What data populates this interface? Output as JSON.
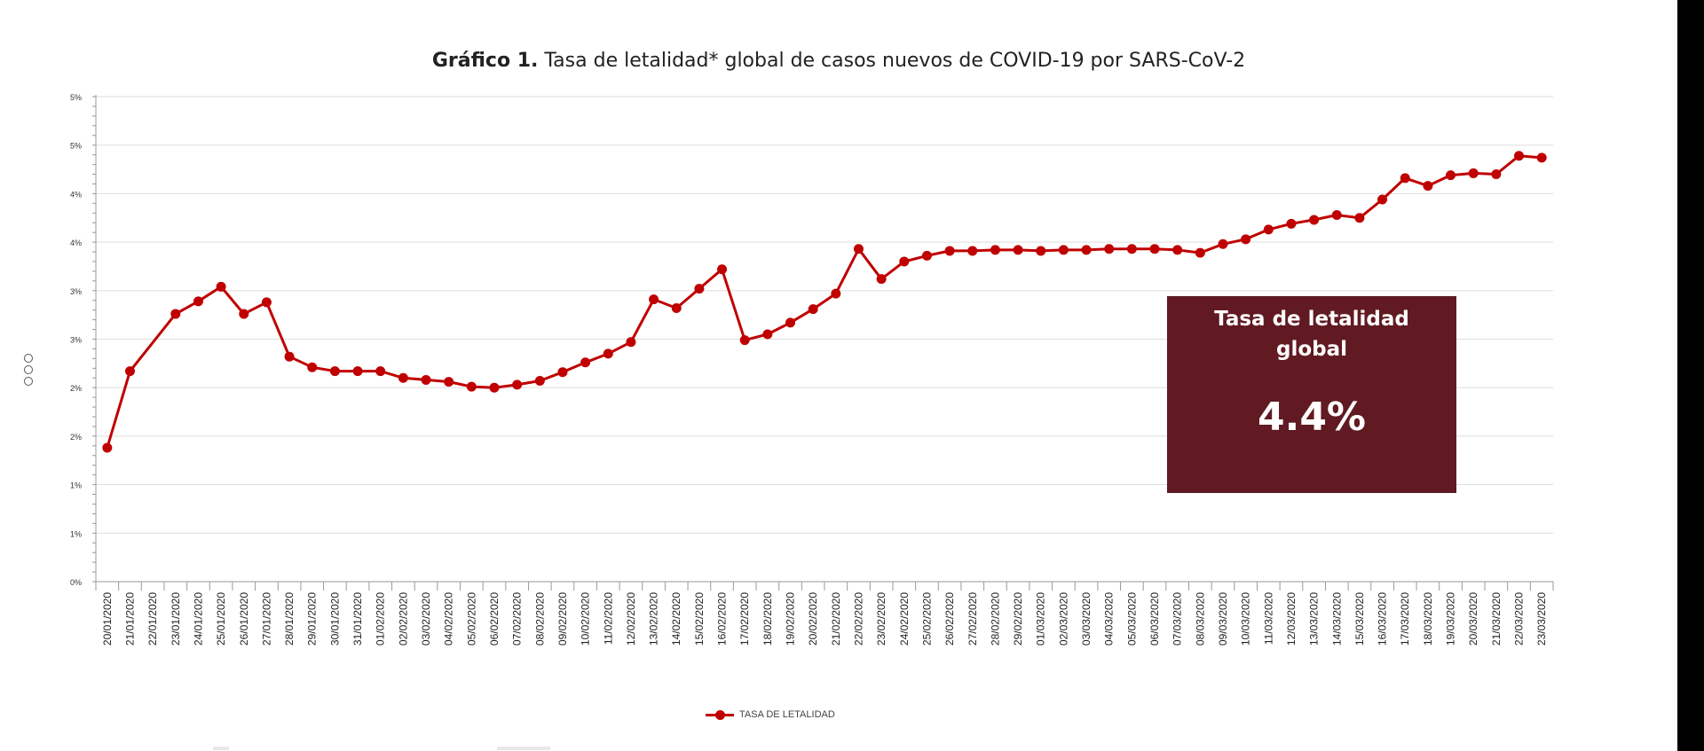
{
  "chart": {
    "title_bold": "Gráfico 1.",
    "title_rest": " Tasa de letalidad* global de casos nuevos de COVID-19 por SARS-CoV-2",
    "callout_title": "Tasa de letalidad global",
    "callout_value": "4.4%",
    "legend_label": "TASA DE LETALIDAD"
  },
  "colors": {
    "series": "#c00000",
    "callout_bg": "#611a22",
    "grid": "#dedede",
    "axis": "#999999"
  },
  "chart_data": {
    "type": "line",
    "title": "Gráfico 1. Tasa de letalidad* global de casos nuevos de COVID-19 por SARS-CoV-2",
    "xlabel": "",
    "ylabel": "",
    "ylim": [
      0,
      5
    ],
    "y_ticks": [
      "0%",
      "1%",
      "1%",
      "2%",
      "2%",
      "3%",
      "3%",
      "4%",
      "4%",
      "5%",
      "5%"
    ],
    "grid": true,
    "legend_position": "bottom",
    "x_labels": [
      "20/01/2020",
      "21/01/2020",
      "22/01/2020",
      "23/01/2020",
      "24/01/2020",
      "25/01/2020",
      "26/01/2020",
      "27/01/2020",
      "28/01/2020",
      "29/01/2020",
      "30/01/2020",
      "31/01/2020",
      "01/02/2020",
      "02/02/2020",
      "03/02/2020",
      "04/02/2020",
      "05/02/2020",
      "06/02/2020",
      "07/02/2020",
      "08/02/2020",
      "09/02/2020",
      "10/02/2020",
      "11/02/2020",
      "12/02/2020",
      "13/02/2020",
      "14/02/2020",
      "15/02/2020",
      "16/02/2020",
      "17/02/2020",
      "18/02/2020",
      "19/02/2020",
      "20/02/2020",
      "21/02/2020",
      "22/02/2020",
      "23/02/2020",
      "24/02/2020",
      "25/02/2020",
      "26/02/2020",
      "27/02/2020",
      "28/02/2020",
      "29/02/2020",
      "01/03/2020",
      "02/03/2020",
      "03/03/2020",
      "04/03/2020",
      "05/03/2020",
      "06/03/2020",
      "07/03/2020",
      "08/03/2020",
      "09/03/2020",
      "10/03/2020",
      "11/03/2020",
      "12/03/2020",
      "13/03/2020",
      "14/03/2020",
      "15/03/2020",
      "16/03/2020",
      "17/03/2020",
      "18/03/2020",
      "19/03/2020",
      "20/03/2020",
      "21/03/2020",
      "22/03/2020",
      "23/03/2020"
    ],
    "series": [
      {
        "name": "TASA DE LETALIDAD",
        "points": [
          {
            "x": "20/01/2020",
            "y": 1.38
          },
          {
            "x": "21/01/2020",
            "y": 2.17
          },
          {
            "x": "23/01/2020",
            "y": 2.76
          },
          {
            "x": "24/01/2020",
            "y": 2.89
          },
          {
            "x": "25/01/2020",
            "y": 3.04
          },
          {
            "x": "26/01/2020",
            "y": 2.76
          },
          {
            "x": "27/01/2020",
            "y": 2.88
          },
          {
            "x": "28/01/2020",
            "y": 2.32
          },
          {
            "x": "29/01/2020",
            "y": 2.21
          },
          {
            "x": "30/01/2020",
            "y": 2.17
          },
          {
            "x": "31/01/2020",
            "y": 2.17
          },
          {
            "x": "01/02/2020",
            "y": 2.17
          },
          {
            "x": "02/02/2020",
            "y": 2.1
          },
          {
            "x": "03/02/2020",
            "y": 2.08
          },
          {
            "x": "04/02/2020",
            "y": 2.06
          },
          {
            "x": "05/02/2020",
            "y": 2.01
          },
          {
            "x": "06/02/2020",
            "y": 2.0
          },
          {
            "x": "07/02/2020",
            "y": 2.03
          },
          {
            "x": "08/02/2020",
            "y": 2.07
          },
          {
            "x": "09/02/2020",
            "y": 2.16
          },
          {
            "x": "10/02/2020",
            "y": 2.26
          },
          {
            "x": "11/02/2020",
            "y": 2.35
          },
          {
            "x": "12/02/2020",
            "y": 2.47
          },
          {
            "x": "13/02/2020",
            "y": 2.91
          },
          {
            "x": "14/02/2020",
            "y": 2.82
          },
          {
            "x": "15/02/2020",
            "y": 3.02
          },
          {
            "x": "16/02/2020",
            "y": 3.22
          },
          {
            "x": "17/02/2020",
            "y": 2.49
          },
          {
            "x": "18/02/2020",
            "y": 2.55
          },
          {
            "x": "19/02/2020",
            "y": 2.67
          },
          {
            "x": "20/02/2020",
            "y": 2.81
          },
          {
            "x": "21/02/2020",
            "y": 2.97
          },
          {
            "x": "22/02/2020",
            "y": 3.43
          },
          {
            "x": "23/02/2020",
            "y": 3.12
          },
          {
            "x": "24/02/2020",
            "y": 3.3
          },
          {
            "x": "25/02/2020",
            "y": 3.36
          },
          {
            "x": "26/02/2020",
            "y": 3.41
          },
          {
            "x": "27/02/2020",
            "y": 3.41
          },
          {
            "x": "28/02/2020",
            "y": 3.42
          },
          {
            "x": "29/02/2020",
            "y": 3.42
          },
          {
            "x": "01/03/2020",
            "y": 3.41
          },
          {
            "x": "02/03/2020",
            "y": 3.42
          },
          {
            "x": "03/03/2020",
            "y": 3.42
          },
          {
            "x": "04/03/2020",
            "y": 3.43
          },
          {
            "x": "05/03/2020",
            "y": 3.43
          },
          {
            "x": "06/03/2020",
            "y": 3.43
          },
          {
            "x": "07/03/2020",
            "y": 3.42
          },
          {
            "x": "08/03/2020",
            "y": 3.39
          },
          {
            "x": "09/03/2020",
            "y": 3.48
          },
          {
            "x": "10/03/2020",
            "y": 3.53
          },
          {
            "x": "11/03/2020",
            "y": 3.63
          },
          {
            "x": "12/03/2020",
            "y": 3.69
          },
          {
            "x": "13/03/2020",
            "y": 3.73
          },
          {
            "x": "14/03/2020",
            "y": 3.78
          },
          {
            "x": "15/03/2020",
            "y": 3.75
          },
          {
            "x": "16/03/2020",
            "y": 3.94
          },
          {
            "x": "17/03/2020",
            "y": 4.16
          },
          {
            "x": "18/03/2020",
            "y": 4.08
          },
          {
            "x": "19/03/2020",
            "y": 4.19
          },
          {
            "x": "20/03/2020",
            "y": 4.21
          },
          {
            "x": "21/03/2020",
            "y": 4.2
          },
          {
            "x": "22/03/2020",
            "y": 4.39
          },
          {
            "x": "23/03/2020",
            "y": 4.37
          }
        ]
      }
    ]
  }
}
